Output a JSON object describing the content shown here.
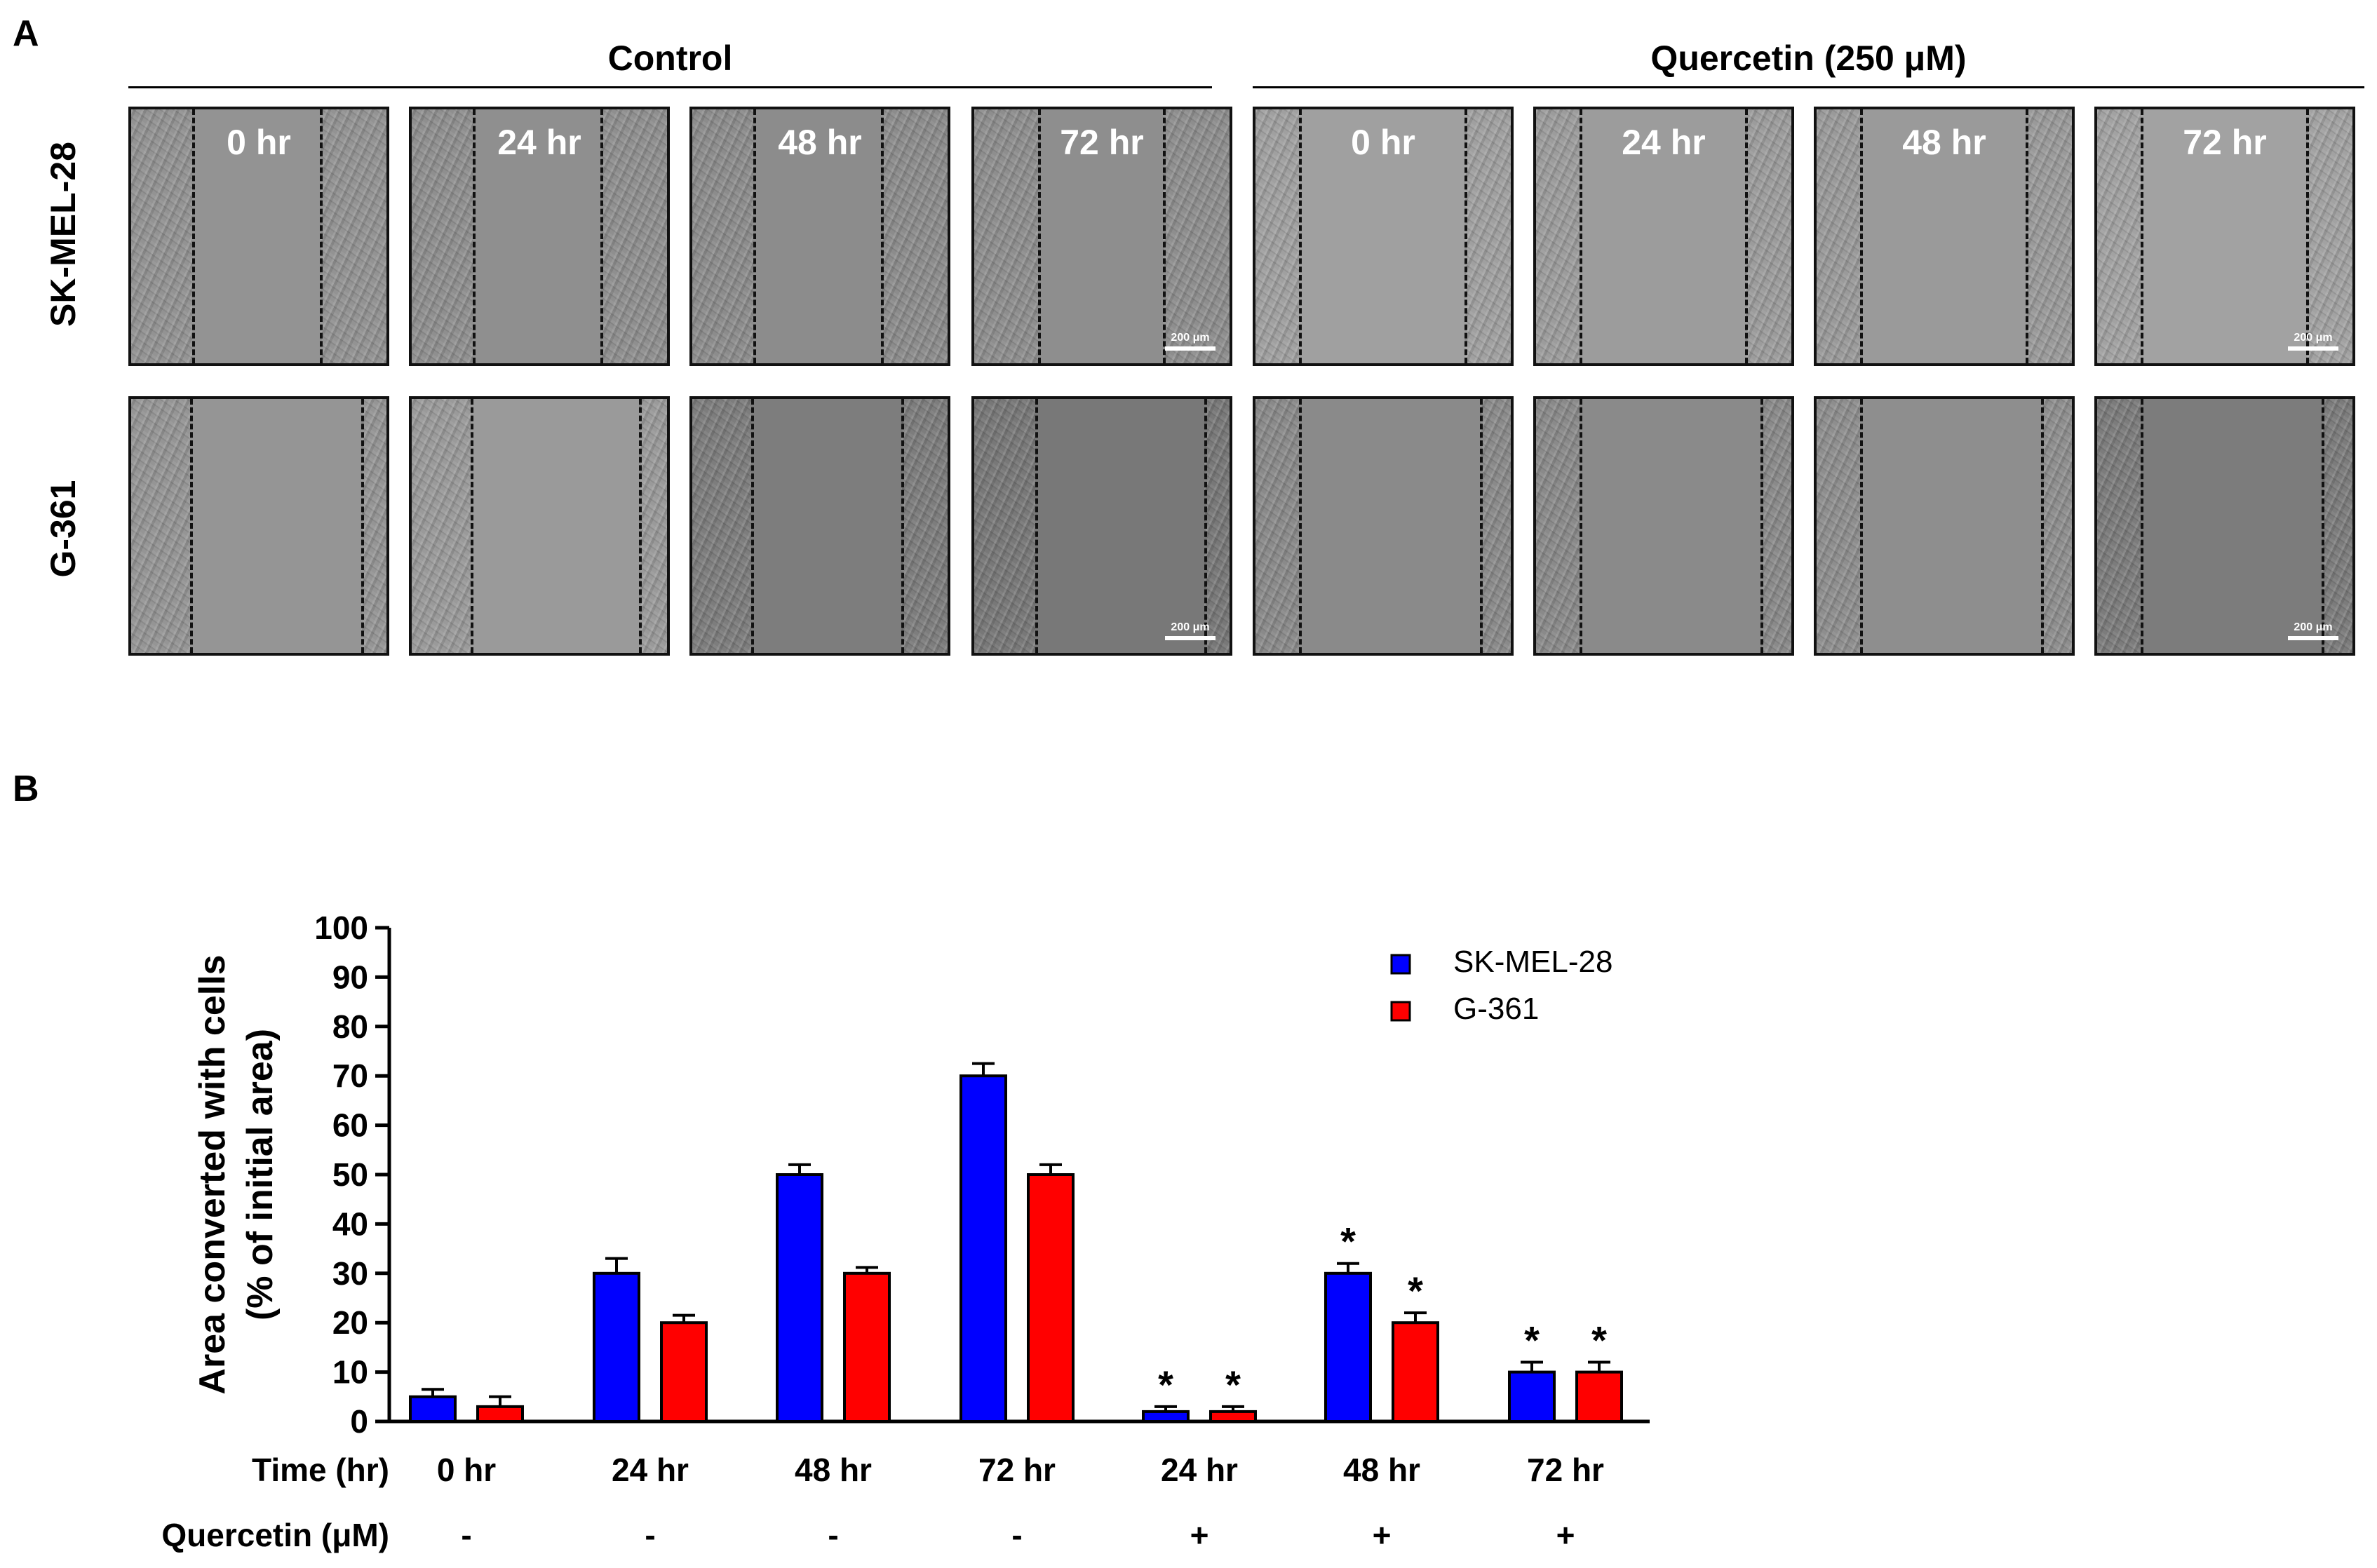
{
  "panel_a": {
    "letter": "A",
    "groups": [
      {
        "name": "control",
        "label": "Control"
      },
      {
        "name": "quercetin",
        "label": "Quercetin (250 μM)"
      }
    ],
    "rows": [
      {
        "name": "sk-mel-28",
        "label": "SK-MEL-28",
        "images": [
          {
            "time": "0 hr",
            "scale": ""
          },
          {
            "time": "24 hr",
            "scale": ""
          },
          {
            "time": "48 hr",
            "scale": ""
          },
          {
            "time": "72 hr",
            "scale": "200 μm"
          },
          {
            "time": "0 hr",
            "scale": ""
          },
          {
            "time": "24 hr",
            "scale": ""
          },
          {
            "time": "48 hr",
            "scale": ""
          },
          {
            "time": "72 hr",
            "scale": "200 μm"
          }
        ]
      },
      {
        "name": "g-361",
        "label": "G-361",
        "images": [
          {
            "time": "",
            "scale": ""
          },
          {
            "time": "",
            "scale": ""
          },
          {
            "time": "",
            "scale": ""
          },
          {
            "time": "",
            "scale": "200 μm"
          },
          {
            "time": "",
            "scale": ""
          },
          {
            "time": "",
            "scale": ""
          },
          {
            "time": "",
            "scale": ""
          },
          {
            "time": "",
            "scale": "200 μm"
          }
        ]
      }
    ]
  },
  "panel_b": {
    "letter": "B"
  },
  "colors": {
    "series1": "#0000ff",
    "series2": "#ff0000"
  },
  "chart_data": {
    "type": "bar",
    "ylabel_line1": "Area converted with cells",
    "ylabel_line2": "(% of initial area)",
    "ylim": [
      0,
      100
    ],
    "yticks": [
      0,
      10,
      20,
      30,
      40,
      50,
      60,
      70,
      80,
      90,
      100
    ],
    "categories": [
      "0 hr",
      "24 hr",
      "48 hr",
      "72 hr",
      "24 hr",
      "48 hr",
      "72 hr"
    ],
    "row1_label": "Time (hr)",
    "row2_label": "Quercetin (μM)",
    "treatment": [
      "-",
      "-",
      "-",
      "-",
      "+",
      "+",
      "+"
    ],
    "legend_position": "top-right",
    "series": [
      {
        "name": "SK-MEL-28",
        "values": [
          5,
          30,
          50,
          70,
          2,
          30,
          10
        ],
        "errors": [
          1.5,
          3,
          2,
          2.5,
          1,
          2,
          2
        ],
        "significance": [
          "",
          "",
          "",
          "",
          "*",
          "*",
          "*"
        ]
      },
      {
        "name": "G-361",
        "values": [
          3,
          20,
          30,
          50,
          2,
          20,
          10
        ],
        "errors": [
          2,
          1.5,
          1.2,
          2,
          1,
          2,
          2
        ],
        "significance": [
          "",
          "",
          "",
          "",
          "*",
          "*",
          "*"
        ]
      }
    ]
  }
}
